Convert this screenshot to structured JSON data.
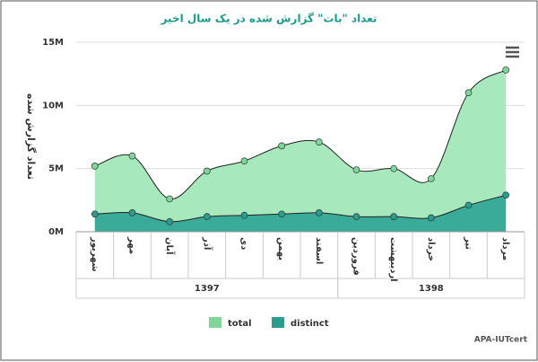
{
  "chart_data": {
    "type": "area",
    "title": "تعداد \"بات\" گزارش شده در یک سال اخیر",
    "y_label": "تعداد گزارش شده",
    "categories": [
      "شهریور",
      "مهر",
      "آبان",
      "آذر",
      "دی",
      "بهمن",
      "اسفند",
      "فروردین",
      "اردیبهشت",
      "خرداد",
      "تیر",
      "مرداد"
    ],
    "x_groups": [
      {
        "label": "1397",
        "span": 7
      },
      {
        "label": "1398",
        "span": 5
      }
    ],
    "series": [
      {
        "name": "total",
        "color": "#7ed69a",
        "fill": "#a8e8bd",
        "values": [
          5200000,
          6000000,
          2600000,
          4800000,
          5600000,
          6800000,
          7100000,
          4900000,
          5000000,
          4200000,
          11000000,
          12800000
        ]
      },
      {
        "name": "distinct",
        "color": "#2a9d8f",
        "fill": "#3aab99",
        "values": [
          1400000,
          1500000,
          800000,
          1200000,
          1300000,
          1400000,
          1500000,
          1200000,
          1200000,
          1100000,
          2100000,
          2900000
        ]
      }
    ],
    "ylim": [
      0,
      15000000
    ],
    "yticks": [
      {
        "value": 0,
        "label": "0M"
      },
      {
        "value": 5000000,
        "label": "5M"
      },
      {
        "value": 10000000,
        "label": "10M"
      },
      {
        "value": 15000000,
        "label": "15M"
      }
    ],
    "grid": true,
    "legend": "bottom",
    "credit": "APA-IUTcert"
  }
}
